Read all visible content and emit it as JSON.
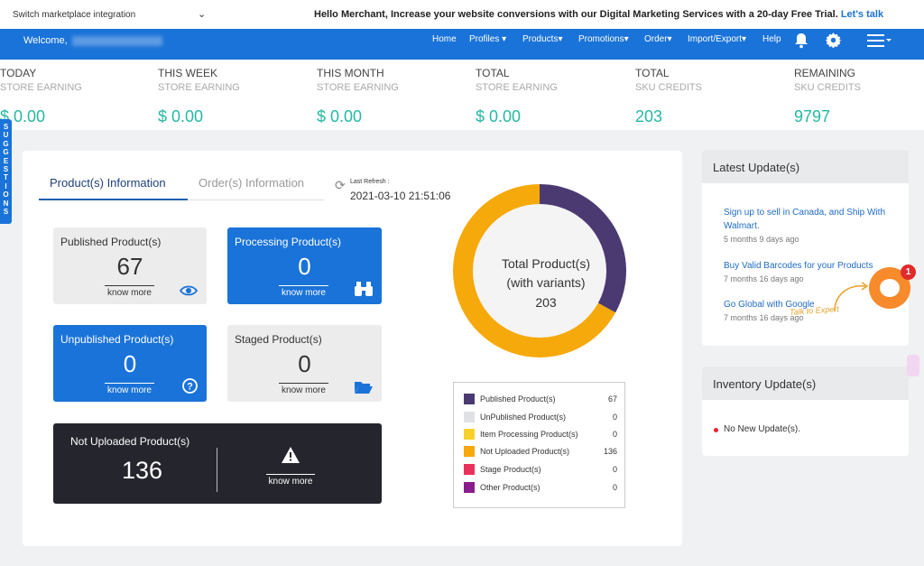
{
  "topbar": {
    "marketplace_label": "Switch marketplace integration",
    "promo_text": "Hello Merchant, Increase your website conversions with our Digital Marketing Services with a 20-day Free Trial.",
    "promo_link": "Let's talk"
  },
  "nav": {
    "welcome": "Welcome,",
    "home": "Home",
    "profiles": "Profiles ▾",
    "products": "Products▾",
    "promotions": "Promotions▾",
    "order": "Order▾",
    "import_export": "Import/Export▾",
    "help": "Help",
    "icons": [
      "bell-icon",
      "gear-icon",
      "hamburger-menu-icon"
    ]
  },
  "stats": [
    {
      "line1": "TODAY",
      "line2": "STORE EARNING",
      "value": "$ 0.00"
    },
    {
      "line1": "THIS WEEK",
      "line2": "STORE EARNING",
      "value": "$ 0.00"
    },
    {
      "line1": "THIS MONTH",
      "line2": "STORE EARNING",
      "value": "$ 0.00"
    },
    {
      "line1": "TOTAL",
      "line2": "STORE EARNING",
      "value": "$ 0.00"
    },
    {
      "line1": "TOTAL",
      "line2": "SKU CREDITS",
      "value": "203"
    },
    {
      "line1": "REMAINING",
      "line2": "SKU CREDITS",
      "value": "9797"
    }
  ],
  "suggestions_tab": "SUGGESTIONS",
  "tabs": {
    "products": "Product(s) Information",
    "orders": "Order(s) Information"
  },
  "refresh": {
    "label": "Last Refresh :",
    "time": "2021-03-10 21:51:06"
  },
  "cards": {
    "published": {
      "title": "Published Product(s)",
      "value": "67",
      "link": "know more",
      "icon": "eye-icon"
    },
    "processing": {
      "title": "Processing Product(s)",
      "value": "0",
      "link": "know more",
      "icon": "binoculars-icon"
    },
    "unpublished": {
      "title": "Unpublished Product(s)",
      "value": "0",
      "link": "know more",
      "icon": "question-circle-icon"
    },
    "staged": {
      "title": "Staged Product(s)",
      "value": "0",
      "link": "know more",
      "icon": "folder-open-icon"
    },
    "not_uploaded": {
      "title": "Not Uploaded Product(s)",
      "value": "136",
      "link": "know more",
      "icon": "warning-icon"
    }
  },
  "chart_data": {
    "type": "pie",
    "center_label_1": "Total Product(s)",
    "center_label_2": "(with variants)",
    "center_value": "203",
    "series": [
      {
        "name": "Published Product(s)",
        "value": 67,
        "color": "#4b3a72"
      },
      {
        "name": "UnPublished Product(s)",
        "value": 0,
        "color": "#dfe1e5"
      },
      {
        "name": "Item Processing Product(s)",
        "value": 0,
        "color": "#f7d02c"
      },
      {
        "name": "Not Uploaded Product(s)",
        "value": 136,
        "color": "#f6a90b"
      },
      {
        "name": "Stage Product(s)",
        "value": 0,
        "color": "#e8315b"
      },
      {
        "name": "Other Product(s)",
        "value": 0,
        "color": "#8a1d8c"
      }
    ]
  },
  "latest": {
    "title": "Latest Update(s)",
    "items": [
      {
        "text": "Sign up to sell in Canada, and Ship With Walmart.",
        "date": "5 months 9 days ago"
      },
      {
        "text": "Buy Valid Barcodes for your Products",
        "date": "7 months 16 days ago"
      },
      {
        "text": "Go Global with Google",
        "date": "7 months 16 days ago"
      }
    ]
  },
  "inventory": {
    "title": "Inventory Update(s)",
    "message": "No New Update(s)."
  },
  "chat": {
    "badge": "1",
    "cta": "Talk to Expert"
  }
}
